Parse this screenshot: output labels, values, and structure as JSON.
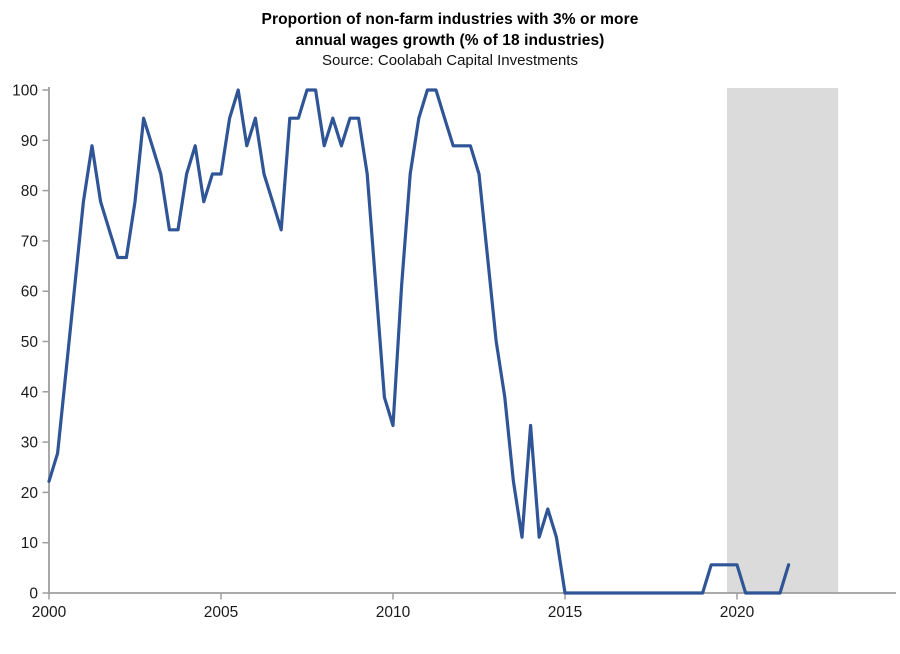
{
  "header": {
    "title_line1": "Proportion of non-farm industries with 3% or more",
    "title_line2": "annual wages growth (% of 18 industries)",
    "source": "Source: Coolabah Capital Investments"
  },
  "chart_data": {
    "type": "line",
    "title": "Proportion of non-farm industries with 3% or more annual wages growth (% of 18 industries)",
    "subtitle": "Source: Coolabah Capital Investments",
    "xlabel": "",
    "ylabel": "",
    "frequency": "quarterly",
    "x_start": 2000,
    "x_step": 0.25,
    "xlim": [
      2000,
      2024.6
    ],
    "ylim": [
      0,
      100
    ],
    "grid": false,
    "legend": "none",
    "x_ticks": [
      2000,
      2005,
      2010,
      2015,
      2020
    ],
    "y_ticks": [
      0,
      10,
      20,
      30,
      40,
      50,
      60,
      70,
      80,
      90,
      100
    ],
    "line_color": "#2F5597",
    "axis_color": "#9E9E9E",
    "text_color": "#1a1a1a",
    "shaded_region": {
      "x_from": 2019.71,
      "x_to": 2022.94,
      "color": "#DBDBDB"
    },
    "series": [
      {
        "name": "Proportion of non-farm industries with 3%+ annual wages growth",
        "values": [
          22.2,
          27.8,
          44.4,
          61.1,
          77.8,
          88.9,
          77.8,
          72.2,
          66.7,
          66.7,
          77.8,
          94.4,
          88.9,
          83.3,
          72.2,
          72.2,
          83.3,
          88.9,
          77.8,
          83.3,
          83.3,
          94.4,
          100,
          88.9,
          94.4,
          83.3,
          77.8,
          72.2,
          94.4,
          94.4,
          100,
          100,
          88.9,
          94.4,
          88.9,
          94.4,
          94.4,
          83.3,
          61.1,
          38.9,
          33.3,
          61.1,
          83.3,
          94.4,
          100,
          100,
          94.4,
          88.9,
          88.9,
          88.9,
          83.3,
          66.7,
          50,
          38.9,
          22.2,
          11.1,
          33.3,
          11.1,
          16.7,
          11.1,
          0,
          0,
          0,
          0,
          0,
          0,
          0,
          0,
          0,
          0,
          0,
          0,
          0,
          0,
          0,
          0,
          0,
          5.6,
          5.6,
          5.6,
          5.6,
          0,
          0,
          0,
          0,
          0,
          5.6
        ]
      }
    ]
  }
}
